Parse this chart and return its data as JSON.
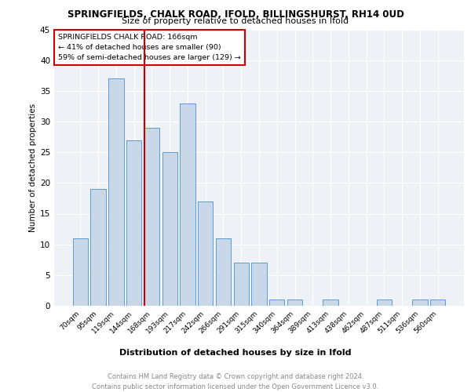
{
  "title1": "SPRINGFIELDS, CHALK ROAD, IFOLD, BILLINGSHURST, RH14 0UD",
  "title2": "Size of property relative to detached houses in Ifold",
  "xlabel": "Distribution of detached houses by size in Ifold",
  "ylabel": "Number of detached properties",
  "categories": [
    "70sqm",
    "95sqm",
    "119sqm",
    "144sqm",
    "168sqm",
    "193sqm",
    "217sqm",
    "242sqm",
    "266sqm",
    "291sqm",
    "315sqm",
    "340sqm",
    "364sqm",
    "389sqm",
    "413sqm",
    "438sqm",
    "462sqm",
    "487sqm",
    "511sqm",
    "536sqm",
    "560sqm"
  ],
  "values": [
    11,
    19,
    37,
    27,
    29,
    25,
    33,
    17,
    11,
    7,
    7,
    1,
    1,
    0,
    1,
    0,
    0,
    1,
    0,
    1,
    1
  ],
  "bar_color": "#c8d8e8",
  "bar_edge_color": "#5b9bd5",
  "vline_color": "#cc0000",
  "annotation_title": "SPRINGFIELDS CHALK ROAD: 166sqm",
  "annotation_line1": "← 41% of detached houses are smaller (90)",
  "annotation_line2": "59% of semi-detached houses are larger (129) →",
  "annotation_box_color": "#cc0000",
  "ylim": [
    0,
    45
  ],
  "yticks": [
    0,
    5,
    10,
    15,
    20,
    25,
    30,
    35,
    40,
    45
  ],
  "footer1": "Contains HM Land Registry data © Crown copyright and database right 2024.",
  "footer2": "Contains public sector information licensed under the Open Government Licence v3.0.",
  "plot_bg_color": "#eef2f7"
}
